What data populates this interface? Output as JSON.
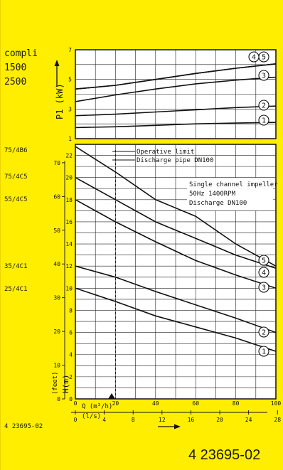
{
  "left_labels": {
    "power_block": [
      "compli",
      "1500",
      "2500"
    ],
    "head_models": [
      "75/4B6",
      "75/4C5",
      "55/4C5",
      "35/4C1",
      "25/4C1"
    ]
  },
  "drawing_number_small": "4 23695-02",
  "drawing_number_large": "4 23695-02",
  "chart_data": [
    {
      "type": "line",
      "ylabel": "P1 (kW)",
      "yticks": [
        1,
        3,
        5,
        7
      ],
      "ylim": [
        1,
        7
      ],
      "xlim": [
        0,
        100
      ],
      "grid": true,
      "series": [
        {
          "name": "1",
          "x": [
            0,
            20,
            40,
            60,
            80,
            100
          ],
          "y": [
            1.75,
            1.8,
            1.9,
            2.0,
            2.05,
            2.1
          ]
        },
        {
          "name": "2",
          "x": [
            0,
            20,
            40,
            60,
            80,
            100
          ],
          "y": [
            2.55,
            2.65,
            2.8,
            2.95,
            3.1,
            3.2
          ]
        },
        {
          "name": "3",
          "x": [
            0,
            20,
            40,
            60,
            80,
            100
          ],
          "y": [
            3.5,
            3.95,
            4.35,
            4.7,
            4.95,
            5.15
          ]
        },
        {
          "name": "4",
          "x": [
            0,
            20,
            40,
            60,
            80,
            100
          ],
          "y": [
            4.35,
            4.6,
            5.0,
            5.4,
            5.75,
            6.05
          ]
        },
        {
          "name": "5",
          "x": [
            0,
            20,
            40,
            60,
            80,
            100
          ],
          "y": [
            4.35,
            4.6,
            5.0,
            5.4,
            5.75,
            6.05
          ]
        }
      ],
      "curve_tags": [
        "4",
        "5",
        "3",
        "2",
        "1"
      ]
    },
    {
      "type": "line",
      "ylabel": "H(m)",
      "ylabel_secondary": "(feet)",
      "xlabel": "Q (m³/h)",
      "xlabel_secondary": "(l/s)",
      "xlim": [
        0,
        100
      ],
      "ylim": [
        0,
        23
      ],
      "yticks_m": [
        0,
        2,
        4,
        6,
        8,
        10,
        12,
        14,
        16,
        18,
        20,
        22
      ],
      "yticks_feet": [
        0,
        10,
        20,
        30,
        40,
        50,
        60,
        70
      ],
      "xticks_m3h": [
        0,
        20,
        40,
        60,
        80,
        100
      ],
      "xticks_ls": [
        0,
        4,
        8,
        12,
        16,
        20,
        24,
        28
      ],
      "grid": true,
      "annotations": [
        {
          "text": "Operative limit",
          "x": 20
        },
        {
          "text": "Discharge pipe DN100",
          "x": 20
        },
        {
          "text": "Single channel impeller"
        },
        {
          "text": "50Hz 1400RPM"
        },
        {
          "text": "Discharge DN100"
        }
      ],
      "operative_limit_x": 20,
      "series": [
        {
          "name": "5",
          "x": [
            0,
            20,
            40,
            60,
            80,
            100
          ],
          "y": [
            22.8,
            20.5,
            18.0,
            16.5,
            14.0,
            12.0
          ]
        },
        {
          "name": "4",
          "x": [
            0,
            20,
            40,
            60,
            80,
            100
          ],
          "y": [
            20.0,
            18.0,
            16.0,
            14.5,
            13.0,
            11.8
          ]
        },
        {
          "name": "3",
          "x": [
            0,
            20,
            40,
            60,
            80,
            100
          ],
          "y": [
            18.0,
            16.0,
            14.2,
            12.5,
            11.2,
            10.0
          ]
        },
        {
          "name": "2",
          "x": [
            0,
            20,
            40,
            60,
            80,
            100
          ],
          "y": [
            12.0,
            11.0,
            9.7,
            8.5,
            7.3,
            6.0
          ]
        },
        {
          "name": "1",
          "x": [
            0,
            20,
            40,
            60,
            80,
            100
          ],
          "y": [
            10.0,
            8.8,
            7.5,
            6.5,
            5.5,
            4.3
          ]
        }
      ]
    }
  ]
}
